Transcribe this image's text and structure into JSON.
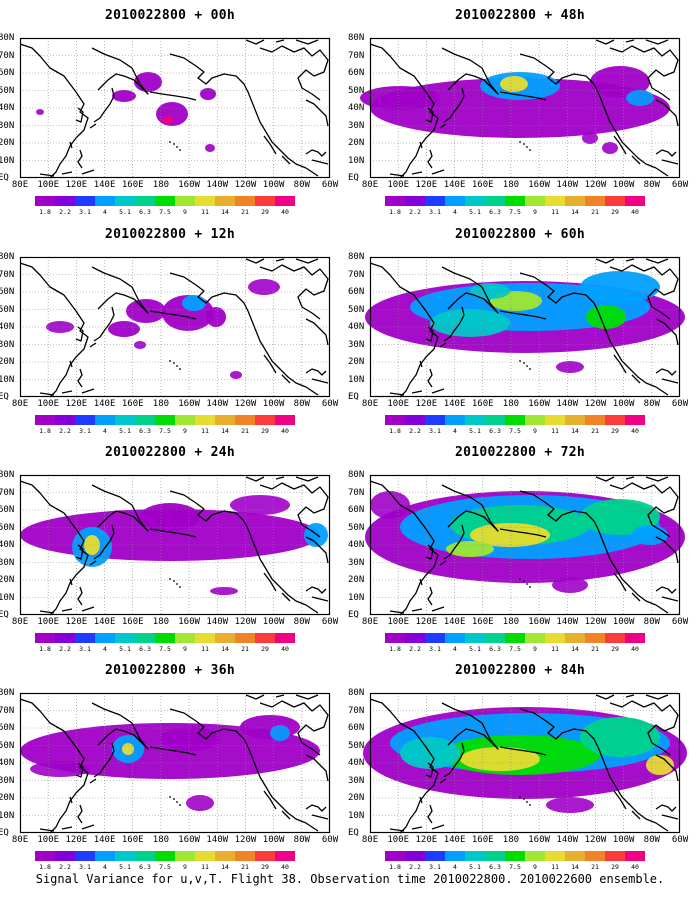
{
  "panels": [
    {
      "title": "2010022800 + 00h"
    },
    {
      "title": "2010022800 + 48h"
    },
    {
      "title": "2010022800 + 12h"
    },
    {
      "title": "2010022800 + 60h"
    },
    {
      "title": "2010022800 + 24h"
    },
    {
      "title": "2010022800 + 72h"
    },
    {
      "title": "2010022800 + 36h"
    },
    {
      "title": "2010022800 + 84h"
    }
  ],
  "lat_labels": [
    "80N",
    "70N",
    "60N",
    "50N",
    "40N",
    "30N",
    "20N",
    "10N",
    "EQ"
  ],
  "lon_labels": [
    "80E",
    "100E",
    "120E",
    "140E",
    "160E",
    "180",
    "160W",
    "140W",
    "120W",
    "100W",
    "80W",
    "60W"
  ],
  "colorbar": {
    "labels": [
      "1.8",
      "2.2",
      "3.1",
      "4",
      "5.1",
      "6.3",
      "7.5",
      "9",
      "11",
      "14",
      "21",
      "29",
      "40"
    ],
    "colors": [
      "#a000c8",
      "#8200dc",
      "#1e3cff",
      "#00a0ff",
      "#00c8c8",
      "#00d28c",
      "#00dc00",
      "#a0e632",
      "#e6dc32",
      "#e6af2d",
      "#f08228",
      "#fa3c3c",
      "#f00082"
    ]
  },
  "footer": "Signal Variance for u,v,T. Flight 38. Observation time 2010022800. 2010022600 ensemble."
}
